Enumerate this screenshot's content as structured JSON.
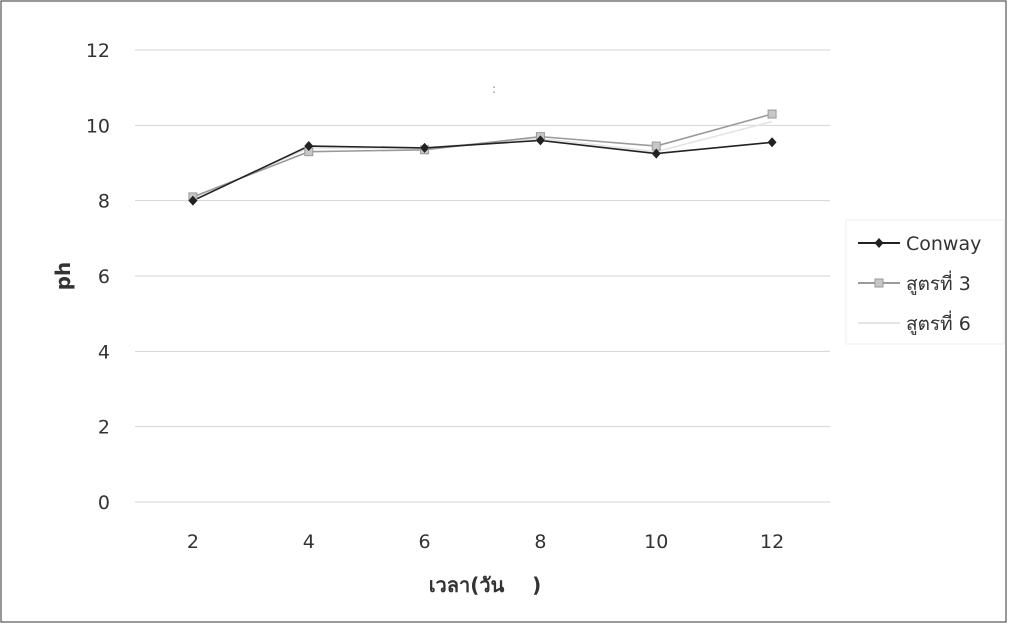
{
  "chart_data": {
    "type": "line",
    "title": "",
    "xlabel": "เวลา(วัน    )",
    "ylabel": "ph",
    "x": [
      2,
      4,
      6,
      8,
      10,
      12
    ],
    "ylim": [
      0,
      12
    ],
    "yticks": [
      0,
      2,
      4,
      6,
      8,
      10,
      12
    ],
    "grid": true,
    "legend_position": "right",
    "series": [
      {
        "name": "Conway",
        "values": [
          8.0,
          9.45,
          9.4,
          9.6,
          9.25,
          9.55
        ],
        "color": "#222222",
        "marker": "diamond"
      },
      {
        "name": "สูตรที่ 3",
        "values": [
          8.1,
          9.3,
          9.35,
          9.7,
          9.45,
          10.3
        ],
        "color": "#9a9a9a",
        "marker": "square"
      },
      {
        "name": "สูตรที่ 6",
        "values": [
          8.05,
          9.4,
          9.4,
          9.65,
          9.3,
          10.1
        ],
        "color": "#e4e4e4",
        "marker": "none"
      }
    ],
    "stray_mark": ":"
  }
}
